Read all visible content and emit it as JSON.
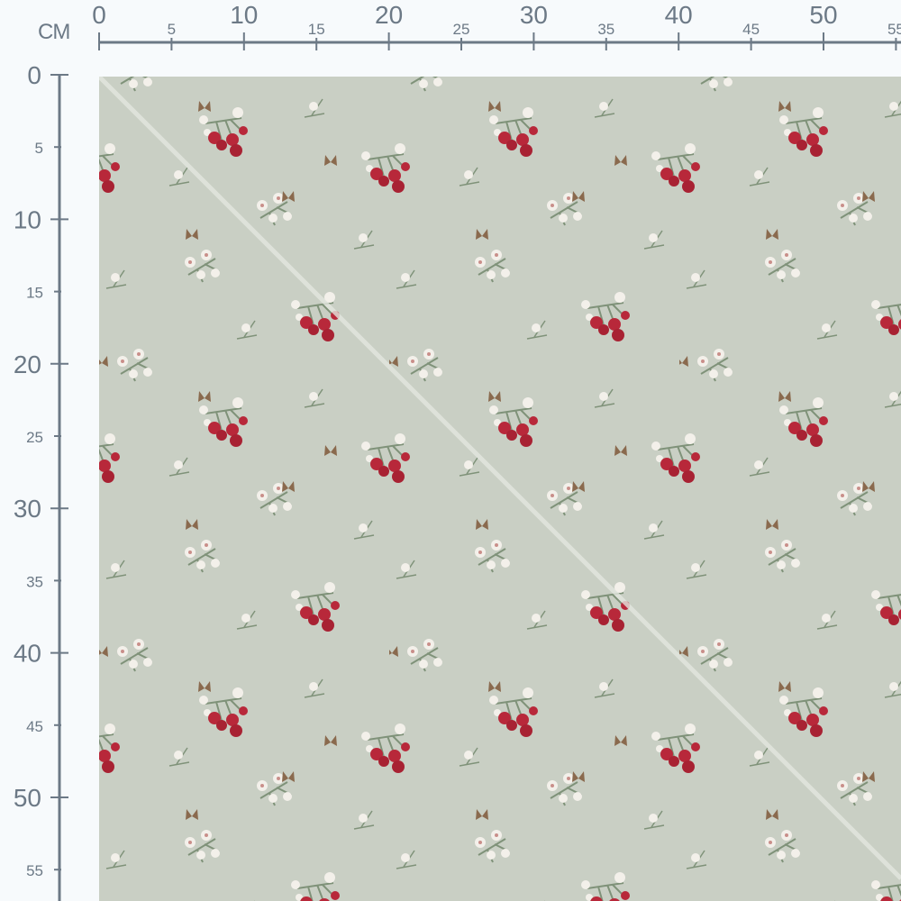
{
  "ruler": {
    "unit_label": "CM",
    "top_labels": [
      "0",
      "5",
      "10",
      "15",
      "20",
      "25",
      "30",
      "35",
      "40",
      "45",
      "50",
      "55"
    ],
    "left_labels": [
      "0",
      "5",
      "10",
      "15",
      "20",
      "25",
      "30",
      "35",
      "40",
      "45",
      "50",
      "55"
    ],
    "color": "#6c7986"
  },
  "fabric": {
    "pattern": "cherries-blossoms-butterflies",
    "background_color": "#c9cfc4",
    "cherry_color": "#b8283a",
    "blossom_color": "#f3f0ea",
    "leaf_color": "#7f9279",
    "butterfly_color": "#8a6a4e",
    "fold_line_color": "#e4e7e0"
  }
}
